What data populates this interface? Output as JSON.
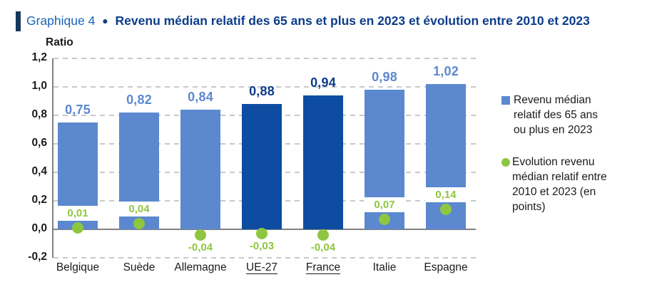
{
  "title": {
    "prefix": "Graphique 4",
    "separator": "●",
    "main": "Revenu médian relatif des 65 ans et plus en 2023 et évolution entre 2010 et 2023"
  },
  "chart_data": {
    "type": "bar",
    "title": "Revenu médian relatif des 65 ans et plus en 2023 et évolution entre 2010 et 2023",
    "categories": [
      "Belgique",
      "Suède",
      "Allemagne",
      "UE-27",
      "France",
      "Italie",
      "Espagne"
    ],
    "underlined_categories": [
      "UE-27",
      "France"
    ],
    "highlighted_categories": [
      "UE-27",
      "France"
    ],
    "series": [
      {
        "name": "Revenu médian relatif des 65 ans ou plus en 2023",
        "type": "bar",
        "values": [
          0.75,
          0.82,
          0.84,
          0.88,
          0.94,
          0.98,
          1.02
        ],
        "value_labels": [
          "0,75",
          "0,82",
          "0,84",
          "0,88",
          "0,94",
          "0,98",
          "1,02"
        ]
      },
      {
        "name": "Evolution revenu médian relatif entre 2010 et 2023 (en points)",
        "type": "scatter",
        "values": [
          0.01,
          0.04,
          -0.04,
          -0.03,
          -0.04,
          0.07,
          0.14
        ],
        "value_labels": [
          "0,01",
          "0,04",
          "-0,04",
          "-0,03",
          "-0,04",
          "0,07",
          "0,14"
        ]
      }
    ],
    "ylabel": "Ratio",
    "ylim": [
      -0.2,
      1.2
    ],
    "yticks": [
      "1,2",
      "1,0",
      "0,8",
      "0,6",
      "0,4",
      "0,2",
      "0,0",
      "-0,2"
    ],
    "ytick_values": [
      1.2,
      1.0,
      0.8,
      0.6,
      0.4,
      0.2,
      0.0,
      -0.2
    ],
    "grid": "horizontal dashed",
    "legend_position": "right"
  },
  "y_axis_title": "Ratio",
  "legend": {
    "items": [
      {
        "swatch": "square",
        "color": "#5C88CF",
        "label": "Revenu médian relatif des 65 ans ou plus en 2023",
        "lines": [
          "Revenu médian",
          "relatif des 65 ans",
          "ou plus en 2023"
        ]
      },
      {
        "swatch": "circle",
        "color": "#8FC640",
        "label": "Evolution revenu médian relatif entre 2010 et 2023 (en points)",
        "lines": [
          "Evolution revenu",
          "médian relatif entre",
          "2010 et 2023 (en",
          "points)"
        ]
      }
    ]
  },
  "colors": {
    "bar_light": "#5C88CF",
    "bar_dark": "#0E4CA1",
    "bar_label_light": "#5C88CF",
    "bar_label_dark": "#0D3C8B",
    "dot_green": "#8FC640",
    "title_prefix": "#1B63B8",
    "title_main": "#0C3D8A",
    "accent_bar": "#17375E",
    "grid": "#C9C9C9",
    "axis": "#808080",
    "text": "#1A1A1A"
  }
}
